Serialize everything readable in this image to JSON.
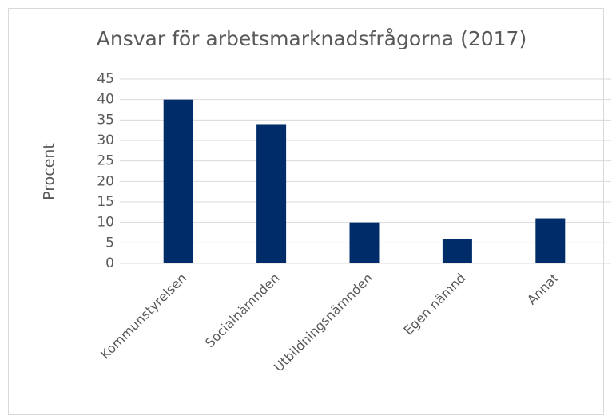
{
  "chart_data": {
    "type": "bar",
    "title": "Ansvar för arbetsmarknadsfrågorna (2017)",
    "y_label": "Procent",
    "categories": [
      "Kommunstyrelsen",
      "Socialnämnden",
      "Utbildningsnämnden",
      "Egen nämnd",
      "Annat"
    ],
    "values": [
      40,
      34,
      10,
      6,
      11
    ],
    "color": "#002d6a",
    "ylim": [
      0,
      45
    ],
    "yticks": [
      0,
      5,
      10,
      15,
      20,
      25,
      30,
      35,
      40,
      45
    ],
    "grid": true
  }
}
